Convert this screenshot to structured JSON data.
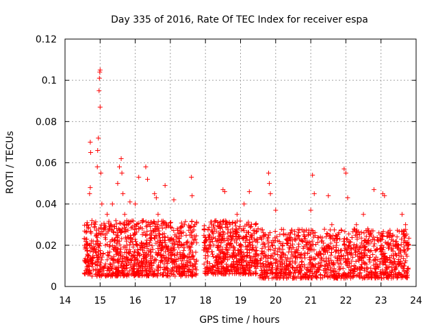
{
  "chart_data": {
    "type": "scatter",
    "title": "Day 335 of 2016, Rate Of TEC Index for receiver espa",
    "xlabel": "GPS time / hours",
    "ylabel": "ROTI / TECUs",
    "xlim": [
      14,
      24
    ],
    "ylim": [
      0,
      0.12
    ],
    "x_ticks": [
      14,
      15,
      16,
      17,
      18,
      19,
      20,
      21,
      22,
      23,
      24
    ],
    "y_ticks": [
      0,
      0.02,
      0.04,
      0.06,
      0.08,
      0.1,
      0.12
    ],
    "x_tick_labels": [
      "14",
      "15",
      "16",
      "17",
      "18",
      "19",
      "20",
      "21",
      "22",
      "23",
      "24"
    ],
    "y_tick_labels": [
      "0",
      "0.02",
      "0.04",
      "0.06",
      "0.08",
      "0.1",
      "0.12"
    ],
    "grid": true,
    "marker": "+",
    "color": "#ff0000",
    "series": [
      {
        "name": "ROTI",
        "points": [
          [
            14.6,
            0.012
          ],
          [
            14.62,
            0.02
          ],
          [
            14.63,
            0.031
          ],
          [
            14.65,
            0.008
          ],
          [
            14.67,
            0.015
          ],
          [
            14.7,
            0.045
          ],
          [
            14.72,
            0.048
          ],
          [
            14.72,
            0.07
          ],
          [
            14.73,
            0.065
          ],
          [
            14.75,
            0.03
          ],
          [
            14.8,
            0.022
          ],
          [
            14.85,
            0.018
          ],
          [
            14.9,
            0.025
          ],
          [
            14.92,
            0.058
          ],
          [
            14.93,
            0.066
          ],
          [
            14.95,
            0.072
          ],
          [
            14.97,
            0.095
          ],
          [
            14.98,
            0.101
          ],
          [
            14.99,
            0.104
          ],
          [
            15.0,
            0.105
          ],
          [
            15.0,
            0.087
          ],
          [
            15.02,
            0.055
          ],
          [
            15.05,
            0.04
          ],
          [
            15.1,
            0.028
          ],
          [
            15.15,
            0.02
          ],
          [
            15.2,
            0.035
          ],
          [
            15.25,
            0.015
          ],
          [
            15.3,
            0.03
          ],
          [
            15.35,
            0.04
          ],
          [
            15.4,
            0.018
          ],
          [
            15.45,
            0.025
          ],
          [
            15.5,
            0.05
          ],
          [
            15.55,
            0.058
          ],
          [
            15.6,
            0.062
          ],
          [
            15.62,
            0.055
          ],
          [
            15.65,
            0.045
          ],
          [
            15.7,
            0.035
          ],
          [
            15.75,
            0.022
          ],
          [
            15.8,
            0.03
          ],
          [
            15.85,
            0.041
          ],
          [
            15.9,
            0.015
          ],
          [
            16.0,
            0.04
          ],
          [
            16.05,
            0.02
          ],
          [
            16.1,
            0.053
          ],
          [
            16.15,
            0.01
          ],
          [
            16.2,
            0.028
          ],
          [
            16.3,
            0.058
          ],
          [
            16.35,
            0.052
          ],
          [
            16.4,
            0.03
          ],
          [
            16.5,
            0.018
          ],
          [
            16.55,
            0.045
          ],
          [
            16.6,
            0.043
          ],
          [
            16.65,
            0.035
          ],
          [
            16.7,
            0.025
          ],
          [
            16.75,
            0.02
          ],
          [
            16.85,
            0.049
          ],
          [
            16.9,
            0.03
          ],
          [
            17.0,
            0.015
          ],
          [
            17.05,
            0.012
          ],
          [
            17.1,
            0.042
          ],
          [
            17.2,
            0.028
          ],
          [
            17.3,
            0.02
          ],
          [
            17.4,
            0.03
          ],
          [
            17.5,
            0.01
          ],
          [
            17.6,
            0.053
          ],
          [
            17.62,
            0.044
          ],
          [
            17.65,
            0.015
          ],
          [
            17.7,
            0.03
          ],
          [
            18.0,
            0.015
          ],
          [
            18.1,
            0.025
          ],
          [
            18.2,
            0.01
          ],
          [
            18.3,
            0.032
          ],
          [
            18.5,
            0.047
          ],
          [
            18.55,
            0.046
          ],
          [
            18.6,
            0.018
          ],
          [
            18.7,
            0.03
          ],
          [
            18.8,
            0.012
          ],
          [
            18.9,
            0.035
          ],
          [
            19.0,
            0.02
          ],
          [
            19.1,
            0.04
          ],
          [
            19.2,
            0.015
          ],
          [
            19.25,
            0.046
          ],
          [
            19.3,
            0.025
          ],
          [
            19.4,
            0.012
          ],
          [
            19.7,
            0.015
          ],
          [
            19.8,
            0.055
          ],
          [
            19.82,
            0.05
          ],
          [
            19.85,
            0.045
          ],
          [
            19.9,
            0.02
          ],
          [
            20.0,
            0.037
          ],
          [
            20.1,
            0.012
          ],
          [
            20.2,
            0.02
          ],
          [
            20.3,
            0.008
          ],
          [
            20.5,
            0.005
          ],
          [
            20.6,
            0.018
          ],
          [
            20.8,
            0.025
          ],
          [
            21.0,
            0.037
          ],
          [
            21.05,
            0.054
          ],
          [
            21.1,
            0.045
          ],
          [
            21.2,
            0.015
          ],
          [
            21.3,
            0.022
          ],
          [
            21.5,
            0.044
          ],
          [
            21.6,
            0.03
          ],
          [
            21.8,
            0.015
          ],
          [
            21.95,
            0.057
          ],
          [
            22.0,
            0.055
          ],
          [
            22.05,
            0.043
          ],
          [
            22.1,
            0.02
          ],
          [
            22.3,
            0.03
          ],
          [
            22.5,
            0.035
          ],
          [
            22.6,
            0.015
          ],
          [
            22.8,
            0.047
          ],
          [
            23.0,
            0.025
          ],
          [
            23.05,
            0.045
          ],
          [
            23.1,
            0.044
          ],
          [
            23.3,
            0.015
          ],
          [
            23.5,
            0.02
          ],
          [
            23.6,
            0.035
          ],
          [
            23.7,
            0.03
          ]
        ],
        "dense_segments": [
          {
            "x_start": 14.55,
            "x_end": 14.75,
            "y_min": 0.006,
            "y_max": 0.03,
            "count": 70
          },
          {
            "x_start": 14.75,
            "x_end": 17.75,
            "y_min": 0.005,
            "y_max": 0.032,
            "count": 900
          },
          {
            "x_start": 17.95,
            "x_end": 19.5,
            "y_min": 0.006,
            "y_max": 0.032,
            "count": 520
          },
          {
            "x_start": 19.55,
            "x_end": 23.8,
            "y_min": 0.004,
            "y_max": 0.028,
            "count": 1100
          }
        ]
      }
    ]
  }
}
